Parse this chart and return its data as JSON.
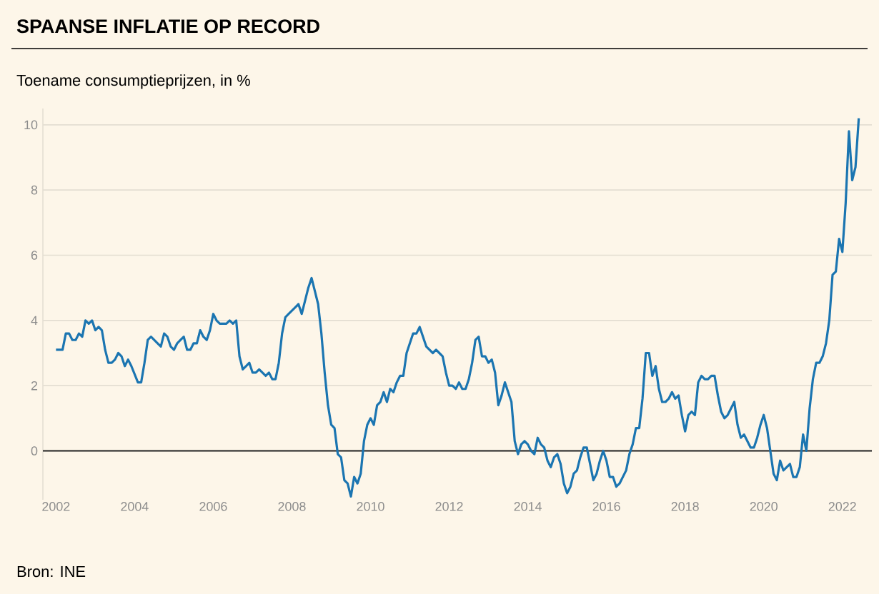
{
  "chart_data": {
    "type": "line",
    "title": "SPAANSE INFLATIE OP RECORD",
    "subtitle": "Toename consumptieprijzen, in %",
    "annotations": [
      "Bron: INE"
    ],
    "x": [
      "2002-01",
      "2002-03",
      "2002-04",
      "2002-05",
      "2002-06",
      "2002-07",
      "2002-08",
      "2002-09",
      "2002-10",
      "2002-11",
      "2002-12",
      "2003-01",
      "2003-02",
      "2003-03",
      "2003-04",
      "2003-05",
      "2003-06",
      "2003-07",
      "2003-08",
      "2003-09",
      "2003-10",
      "2003-11",
      "2003-12",
      "2004-02",
      "2004-03",
      "2004-04",
      "2004-05",
      "2004-06",
      "2004-08",
      "2004-09",
      "2004-10",
      "2004-11",
      "2004-12",
      "2005-01",
      "2005-02",
      "2005-03",
      "2005-04",
      "2005-05",
      "2005-06",
      "2005-07",
      "2005-08",
      "2005-09",
      "2005-10",
      "2005-11",
      "2005-12",
      "2006-01",
      "2006-02",
      "2006-03",
      "2006-05",
      "2006-06",
      "2006-07",
      "2006-08",
      "2006-09",
      "2006-10",
      "2006-11",
      "2006-12",
      "2007-01",
      "2007-02",
      "2007-03",
      "2007-04",
      "2007-05",
      "2007-06",
      "2007-07",
      "2007-08",
      "2007-09",
      "2007-10",
      "2007-11",
      "2007-12",
      "2008-01",
      "2008-02",
      "2008-03",
      "2008-04",
      "2008-05",
      "2008-06",
      "2008-07",
      "2008-08",
      "2008-09",
      "2008-10",
      "2008-11",
      "2008-12",
      "2009-01",
      "2009-02",
      "2009-03",
      "2009-04",
      "2009-05",
      "2009-06",
      "2009-07",
      "2009-08",
      "2009-09",
      "2009-10",
      "2009-11",
      "2009-12",
      "2010-01",
      "2010-02",
      "2010-03",
      "2010-04",
      "2010-05",
      "2010-06",
      "2010-07",
      "2010-08",
      "2010-09",
      "2010-10",
      "2010-11",
      "2010-12",
      "2011-01",
      "2011-02",
      "2011-03",
      "2011-04",
      "2011-05",
      "2011-06",
      "2011-07",
      "2011-08",
      "2011-09",
      "2011-10",
      "2011-11",
      "2011-12",
      "2012-01",
      "2012-02",
      "2012-03",
      "2012-04",
      "2012-05",
      "2012-06",
      "2012-07",
      "2012-08",
      "2012-09",
      "2012-10",
      "2012-11",
      "2012-12",
      "2013-01",
      "2013-02",
      "2013-03",
      "2013-04",
      "2013-05",
      "2013-06",
      "2013-07",
      "2013-08",
      "2013-09",
      "2013-10",
      "2013-11",
      "2013-12",
      "2014-01",
      "2014-02",
      "2014-03",
      "2014-04",
      "2014-05",
      "2014-06",
      "2014-07",
      "2014-08",
      "2014-09",
      "2014-10",
      "2014-11",
      "2014-12",
      "2015-01",
      "2015-02",
      "2015-03",
      "2015-04",
      "2015-05",
      "2015-06",
      "2015-07",
      "2015-08",
      "2015-09",
      "2015-10",
      "2015-11",
      "2015-12",
      "2016-01",
      "2016-02",
      "2016-03",
      "2016-04",
      "2016-05",
      "2016-06",
      "2016-07",
      "2016-08",
      "2016-09",
      "2016-10",
      "2016-11",
      "2016-12",
      "2017-01",
      "2017-02",
      "2017-03",
      "2017-04",
      "2017-05",
      "2017-06",
      "2017-07",
      "2017-08",
      "2017-09",
      "2017-10",
      "2017-11",
      "2017-12",
      "2018-01",
      "2018-02",
      "2018-03",
      "2018-04",
      "2018-05",
      "2018-06",
      "2018-07",
      "2018-08",
      "2018-09",
      "2018-10",
      "2018-11",
      "2018-12",
      "2019-01",
      "2019-02",
      "2019-03",
      "2019-04",
      "2019-05",
      "2019-06",
      "2019-07",
      "2019-08",
      "2019-09",
      "2019-10",
      "2019-11",
      "2019-12",
      "2020-01",
      "2020-02",
      "2020-03",
      "2020-04",
      "2020-05",
      "2020-06",
      "2020-07",
      "2020-08",
      "2020-09",
      "2020-10",
      "2020-11",
      "2020-12",
      "2021-01",
      "2021-02",
      "2021-03",
      "2021-04",
      "2021-05",
      "2021-06",
      "2021-07",
      "2021-08",
      "2021-09",
      "2021-10",
      "2021-11",
      "2021-12",
      "2022-01",
      "2022-02",
      "2022-03",
      "2022-04",
      "2022-05",
      "2022-06"
    ],
    "series": [
      {
        "color": "#1b75b1",
        "values": [
          3.1,
          3.1,
          3.6,
          3.6,
          3.4,
          3.4,
          3.6,
          3.5,
          4.0,
          3.9,
          4.0,
          3.7,
          3.8,
          3.7,
          3.1,
          2.7,
          2.7,
          2.8,
          3.0,
          2.9,
          2.6,
          2.8,
          2.6,
          2.1,
          2.1,
          2.7,
          3.4,
          3.5,
          3.3,
          3.2,
          3.6,
          3.5,
          3.2,
          3.1,
          3.3,
          3.4,
          3.5,
          3.1,
          3.1,
          3.3,
          3.3,
          3.7,
          3.5,
          3.4,
          3.7,
          4.2,
          4.0,
          3.9,
          3.9,
          4.0,
          3.9,
          4.0,
          2.9,
          2.5,
          2.6,
          2.7,
          2.4,
          2.4,
          2.5,
          2.4,
          2.3,
          2.4,
          2.2,
          2.2,
          2.7,
          3.6,
          4.1,
          4.2,
          4.3,
          4.4,
          4.5,
          4.2,
          4.6,
          5.0,
          5.3,
          4.9,
          4.5,
          3.6,
          2.4,
          1.4,
          0.8,
          0.7,
          -0.1,
          -0.2,
          -0.9,
          -1.0,
          -1.4,
          -0.8,
          -1.0,
          -0.7,
          0.3,
          0.8,
          1.0,
          0.8,
          1.4,
          1.5,
          1.8,
          1.5,
          1.9,
          1.8,
          2.1,
          2.3,
          2.3,
          3.0,
          3.3,
          3.6,
          3.6,
          3.8,
          3.5,
          3.2,
          3.1,
          3.0,
          3.1,
          3.0,
          2.9,
          2.4,
          2.0,
          2.0,
          1.9,
          2.1,
          1.9,
          1.9,
          2.2,
          2.7,
          3.4,
          3.5,
          2.9,
          2.9,
          2.7,
          2.8,
          2.4,
          1.4,
          1.7,
          2.1,
          1.8,
          1.5,
          0.3,
          -0.1,
          0.2,
          0.3,
          0.2,
          0.0,
          -0.1,
          0.4,
          0.2,
          0.1,
          -0.3,
          -0.5,
          -0.2,
          -0.1,
          -0.4,
          -1.0,
          -1.3,
          -1.1,
          -0.7,
          -0.6,
          -0.2,
          0.1,
          0.1,
          -0.4,
          -0.9,
          -0.7,
          -0.3,
          0.0,
          -0.3,
          -0.8,
          -0.8,
          -1.1,
          -1.0,
          -0.8,
          -0.6,
          -0.1,
          0.2,
          0.7,
          0.7,
          1.6,
          3.0,
          3.0,
          2.3,
          2.6,
          1.9,
          1.5,
          1.5,
          1.6,
          1.8,
          1.6,
          1.7,
          1.1,
          0.6,
          1.1,
          1.2,
          1.1,
          2.1,
          2.3,
          2.2,
          2.2,
          2.3,
          2.3,
          1.7,
          1.2,
          1.0,
          1.1,
          1.3,
          1.5,
          0.8,
          0.4,
          0.5,
          0.3,
          0.1,
          0.1,
          0.4,
          0.8,
          1.1,
          0.7,
          0.0,
          -0.7,
          -0.9,
          -0.3,
          -0.6,
          -0.5,
          -0.4,
          -0.8,
          -0.8,
          -0.5,
          0.5,
          0.0,
          1.3,
          2.2,
          2.7,
          2.7,
          2.9,
          3.3,
          4.0,
          5.4,
          5.5,
          6.5,
          6.1,
          7.6,
          9.8,
          8.3,
          8.7,
          10.2
        ]
      }
    ],
    "xlim": [
      "2001-09",
      "2022-10"
    ],
    "xticks": [
      "2002",
      "2004",
      "2006",
      "2008",
      "2010",
      "2012",
      "2014",
      "2016",
      "2018",
      "2020",
      "2022"
    ],
    "ylim": [
      -1.5,
      10.5
    ],
    "yticks": [
      0,
      2,
      4,
      6,
      8,
      10
    ],
    "grid": "y",
    "ref_lines": [
      {
        "axis": "y",
        "value": 0,
        "color": "#222222"
      }
    ]
  }
}
